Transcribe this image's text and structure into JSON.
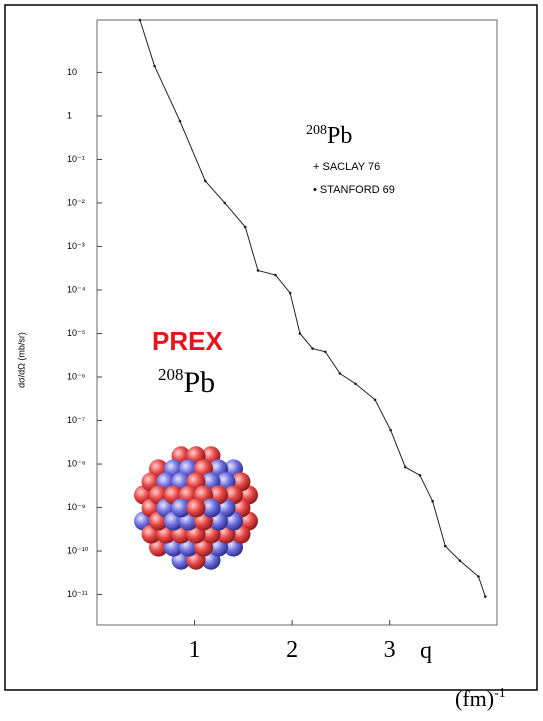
{
  "chart_data": {
    "type": "line",
    "y_axis_label": "dσ/dΩ (mb/sr)",
    "x_axis_label": "q",
    "x_axis_unit": {
      "base": "(fm)",
      "exponent": "-1"
    },
    "nucleus_label_top": {
      "mass": "208",
      "symbol": "Pb"
    },
    "legend": [
      {
        "marker": "+",
        "label": "SACLAY 76"
      },
      {
        "marker": "•",
        "label": "STANFORD 69"
      }
    ],
    "experiment": "PREX",
    "nucleus_label_bottom": {
      "mass": "208",
      "symbol": "Pb"
    },
    "log_y": true,
    "color": "#222222",
    "x": [
      0.44,
      0.59,
      0.85,
      1.11,
      1.31,
      1.52,
      1.65,
      1.83,
      1.98,
      2.08,
      2.21,
      2.34,
      2.49,
      2.65,
      2.85,
      3.01,
      3.16,
      3.31,
      3.44,
      3.57,
      3.72,
      3.91,
      3.98
    ],
    "values": [
      160,
      14,
      0.76,
      0.032,
      0.01,
      0.0028,
      0.00028,
      0.00022,
      8.5e-05,
      1e-05,
      4.5e-06,
      3.8e-06,
      1.2e-06,
      7e-07,
      3e-07,
      6e-08,
      8.5e-09,
      5.5e-09,
      1.4e-09,
      1.3e-10,
      6e-11,
      2.6e-11,
      9e-12
    ],
    "xlim": [
      0,
      4.1
    ],
    "xticks": [
      1,
      2,
      3
    ],
    "ylim": [
      2e-12,
      160
    ],
    "yticks": [
      10,
      1,
      {
        "value": 0.1,
        "label": "10⁻¹"
      },
      {
        "value": 0.01,
        "label": "10⁻²"
      },
      {
        "value": 0.001,
        "label": "10⁻³"
      },
      {
        "value": 0.0001,
        "label": "10⁻⁴"
      },
      {
        "value": 1e-05,
        "label": "10⁻⁵"
      },
      {
        "value": 1e-06,
        "label": "10⁻⁶"
      },
      {
        "value": 1e-07,
        "label": "10⁻⁷"
      },
      {
        "value": 1e-08,
        "label": "10⁻⁸"
      },
      {
        "value": 1e-09,
        "label": "10⁻⁹"
      },
      {
        "value": 1e-10,
        "label": "10⁻¹⁰"
      },
      {
        "value": 1e-11,
        "label": "10⁻¹¹"
      }
    ]
  }
}
